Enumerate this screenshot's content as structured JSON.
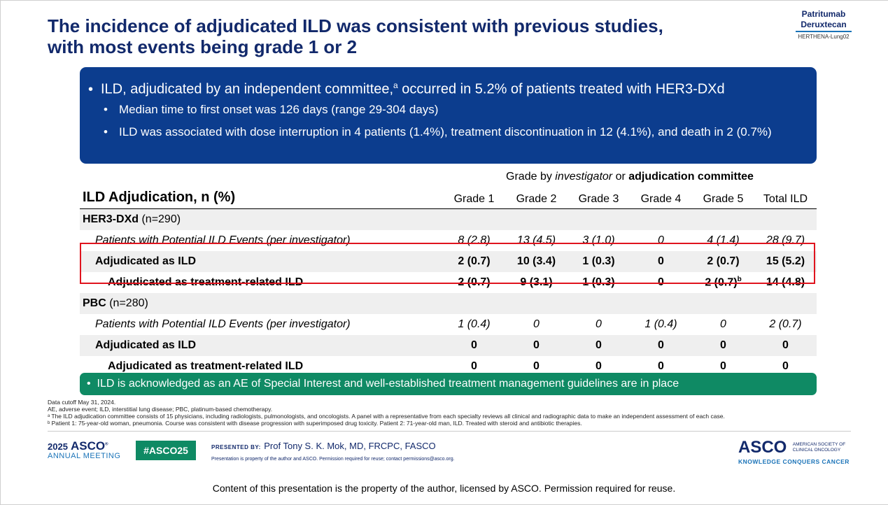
{
  "title": {
    "line1": "The incidence of adjudicated ILD was consistent with previous studies,",
    "line2": "with most events being grade 1 or 2"
  },
  "brand": {
    "line1": "Patritumab",
    "line2": "Deruxtecan",
    "line3": "HERTHENA-Lung02"
  },
  "bluebox": {
    "bullet1_pre": "ILD, adjudicated by an independent committee,",
    "bullet1_sup": "a",
    "bullet1_post": " occurred in 5.2% of patients treated with HER3-DXd",
    "sub1": "Median time to first onset was 126 days (range 29-304 days)",
    "sub2": "ILD was associated with dose interruption in 4 patients (1.4%), treatment discontinuation in 12 (4.1%), and death in 2 (0.7%)"
  },
  "table": {
    "group_pre": "Grade by ",
    "group_inv": "investigator",
    "group_or": " or ",
    "group_adj": "adjudication committee",
    "title": "ILD Adjudication, n (%)",
    "columns": [
      "Grade 1",
      "Grade 2",
      "Grade 3",
      "Grade 4",
      "Grade 5",
      "Total ILD"
    ],
    "sections": [
      {
        "name": "HER3-DXd",
        "n": " (n=290)",
        "rows": [
          {
            "label": "Patients with Potential ILD Events (per investigator)",
            "values": [
              "8 (2.8)",
              "13 (4.5)",
              "3 (1.0)",
              "0",
              "4 (1.4)",
              "28 (9.7)"
            ]
          },
          {
            "label": "Adjudicated as ILD",
            "values": [
              "2 (0.7)",
              "10 (3.4)",
              "1 (0.3)",
              "0",
              "2 (0.7)",
              "15 (5.2)"
            ]
          },
          {
            "label": "Adjudicated as treatment-related ILD",
            "values": [
              "2 (0.7)",
              "9 (3.1)",
              "1 (0.3)",
              "0",
              "2 (0.7)",
              "14 (4.8)"
            ],
            "g5_sup": "b"
          }
        ]
      },
      {
        "name": "PBC",
        "n": " (n=280)",
        "rows": [
          {
            "label": "Patients with Potential ILD Events (per investigator)",
            "values": [
              "1 (0.4)",
              "0",
              "0",
              "1 (0.4)",
              "0",
              "2 (0.7)"
            ]
          },
          {
            "label": "Adjudicated as ILD",
            "values": [
              "0",
              "0",
              "0",
              "0",
              "0",
              "0"
            ]
          },
          {
            "label": "Adjudicated as treatment-related ILD",
            "values": [
              "0",
              "0",
              "0",
              "0",
              "0",
              "0"
            ]
          }
        ]
      }
    ]
  },
  "greenbox": "ILD is acknowledged as an AE of Special Interest and well-established treatment management guidelines are in place",
  "footnotes": {
    "f1": "Data cutoff May 31, 2024.",
    "f2": "AE, adverse event; ILD, interstitial lung disease; PBC, platinum-based chemotherapy.",
    "f3": "ᵃ The ILD adjudication committee consists of 15 physicians, including radiologists, pulmonologists, and oncologists. A panel with a representative from each specialty reviews all clinical and radiographic data to make an independent assessment of each case.",
    "f4": "ᵇ Patient 1: 75-year-old woman, pneumonia. Course was consistent with disease progression with superimposed drug toxicity. Patient 2: 71-year-old man, ILD. Treated with steroid and antibiotic therapies."
  },
  "footer": {
    "year": "2025",
    "asco": "ASCO",
    "annual": "ANNUAL MEETING",
    "hashtag": "#ASCO25",
    "presented_by": "PRESENTED BY:",
    "presenter": "Prof Tony S. K. Mok, MD, FRCPC, FASCO",
    "property": "Presentation is property of the author and ASCO. Permission required for reuse; contact permissions@asco.org.",
    "asco_logo": "ASCO",
    "society_l1": "AMERICAN SOCIETY OF",
    "society_l2": "CLINICAL ONCOLOGY",
    "kcc": "KNOWLEDGE CONQUERS CANCER"
  },
  "copyright": "Content of this presentation is the property of the author, licensed by ASCO. Permission required for reuse.",
  "colors": {
    "title": "#12296b",
    "bluebox": "#0c3d8e",
    "greenbox": "#0f8a64",
    "highlight": "#e0141e"
  }
}
